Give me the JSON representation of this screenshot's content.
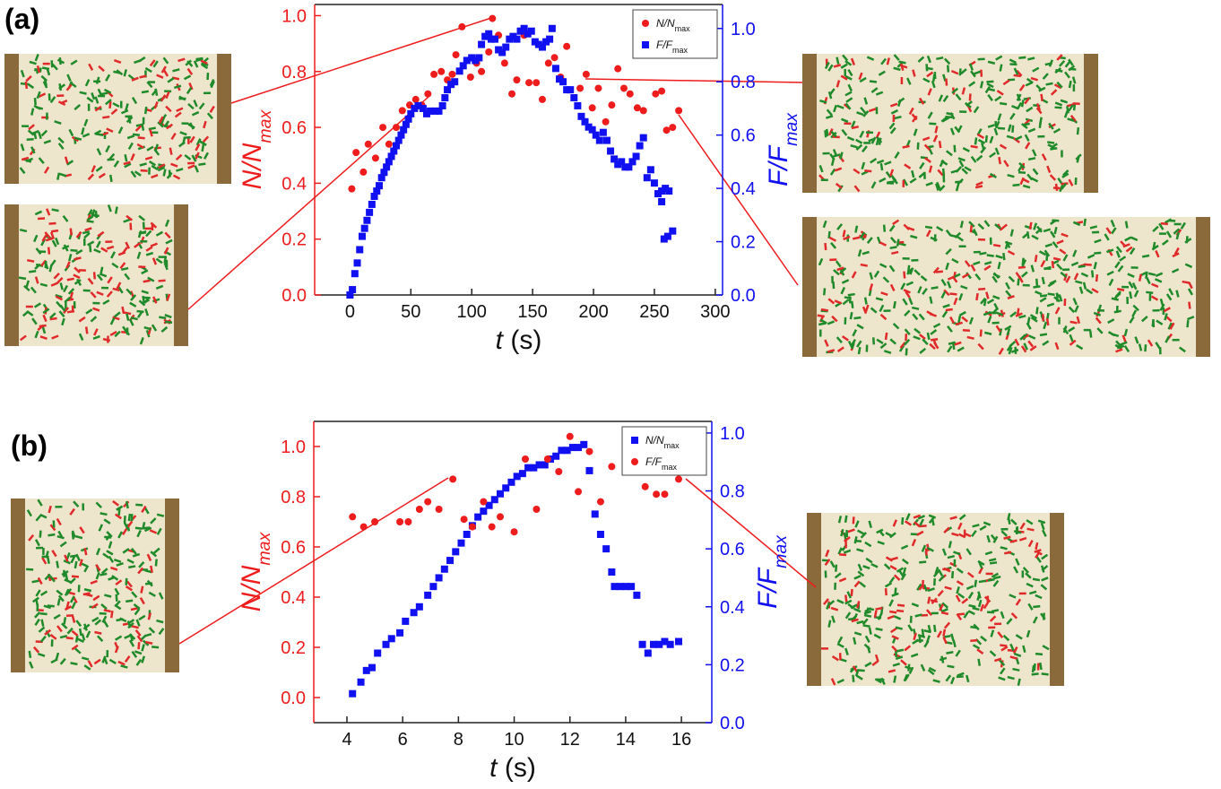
{
  "chart_data": [
    {
      "type": "scatter",
      "panel_label": "(a)",
      "x_label": [
        "t",
        " (s)"
      ],
      "y_label": [
        "N/N",
        "max"
      ],
      "y2_label": [
        "F/F",
        "max"
      ],
      "legend": "upper right",
      "xlim": [
        -29,
        306
      ],
      "xticks": [
        0,
        50,
        100,
        150,
        200,
        250,
        300
      ],
      "ylim": [
        0,
        1.04
      ],
      "yticks": [
        {
          "value": 0,
          "label": "0.0"
        },
        0.2,
        0.4,
        0.6,
        0.8,
        {
          "value": 1,
          "label": "1.0"
        }
      ],
      "y2lim": [
        0,
        1.09
      ],
      "y2ticks": [
        {
          "value": 0,
          "label": "0.0"
        },
        0.2,
        0.4,
        0.6,
        0.8,
        {
          "value": 1,
          "label": "1.0"
        }
      ],
      "series": [
        {
          "name": [
            "N/N",
            "max"
          ],
          "color": "#ee1c1c",
          "marker": "circle",
          "axis": "y",
          "x": [
            1.5,
            5,
            11,
            15,
            21,
            27,
            32,
            38,
            43,
            49,
            54,
            59,
            64,
            69,
            75,
            80,
            84,
            87,
            92,
            99,
            104,
            108,
            114,
            117,
            122,
            127,
            133,
            137,
            143,
            147,
            153,
            158,
            163,
            168,
            173,
            178,
            189,
            194,
            199,
            204,
            210,
            215,
            220,
            225,
            230,
            236,
            241,
            251,
            256,
            260,
            265,
            270
          ],
          "values": [
            0.38,
            0.51,
            0.44,
            0.54,
            0.49,
            0.6,
            0.54,
            0.6,
            0.66,
            0.68,
            0.7,
            0.68,
            0.72,
            0.79,
            0.8,
            0.77,
            0.79,
            0.86,
            0.96,
            0.78,
            0.83,
            0.8,
            0.87,
            0.99,
            0.93,
            0.83,
            0.72,
            0.77,
            0.93,
            0.76,
            0.76,
            0.7,
            0.83,
            0.85,
            0.78,
            0.89,
            0.74,
            0.79,
            0.67,
            0.74,
            0.62,
            0.68,
            0.81,
            0.74,
            0.72,
            0.67,
            0.66,
            0.72,
            0.73,
            0.59,
            0.6,
            0.66
          ]
        },
        {
          "name": [
            "F/F",
            "max"
          ],
          "color": "#1010f0",
          "marker": "square",
          "axis": "y2",
          "x": [
            0,
            2,
            4,
            6,
            8,
            10,
            12,
            14,
            16,
            18,
            20,
            22,
            24,
            26,
            28,
            30,
            32,
            34,
            36,
            38,
            40,
            42,
            44,
            46,
            48,
            50,
            53,
            56,
            60,
            63,
            66,
            70,
            73,
            76,
            78,
            80,
            83,
            86,
            90,
            93,
            96,
            100,
            103,
            106,
            108,
            111,
            114,
            116,
            119,
            122,
            125,
            128,
            131,
            134,
            137,
            140,
            143,
            146,
            149,
            152,
            155,
            158,
            161,
            164,
            166,
            169,
            172,
            175,
            178,
            181,
            184,
            187,
            190,
            193,
            196,
            199,
            202,
            205,
            208,
            211,
            214,
            217,
            220,
            223,
            226,
            229,
            232,
            235,
            238,
            241,
            244,
            247,
            250,
            253,
            256,
            259,
            262,
            256,
            258,
            261,
            265
          ],
          "values": [
            0,
            0.02,
            0.08,
            0.12,
            0.17,
            0.22,
            0.25,
            0.28,
            0.31,
            0.34,
            0.37,
            0.39,
            0.41,
            0.44,
            0.46,
            0.48,
            0.5,
            0.52,
            0.54,
            0.56,
            0.58,
            0.6,
            0.62,
            0.64,
            0.66,
            0.68,
            0.7,
            0.71,
            0.7,
            0.68,
            0.69,
            0.69,
            0.69,
            0.71,
            0.74,
            0.77,
            0.79,
            0.8,
            0.84,
            0.86,
            0.88,
            0.89,
            0.88,
            0.89,
            0.94,
            0.97,
            0.98,
            0.96,
            0.96,
            0.92,
            0.91,
            0.93,
            0.96,
            0.97,
            0.96,
            0.99,
            1.0,
            0.98,
            0.99,
            0.95,
            0.94,
            0.93,
            0.95,
            0.96,
            1.0,
            0.85,
            0.81,
            0.8,
            0.77,
            0.77,
            0.74,
            0.71,
            0.67,
            0.65,
            0.63,
            0.62,
            0.6,
            0.58,
            0.61,
            0.58,
            0.54,
            0.51,
            0.49,
            0.5,
            0.48,
            0.48,
            0.5,
            0.52,
            0.56,
            0.59,
            0.44,
            0.47,
            0.42,
            0.38,
            0.39,
            0.4,
            0.39,
            0.35,
            0.21,
            0.22,
            0.24
          ]
        }
      ]
    },
    {
      "type": "scatter",
      "panel_label": "(b)",
      "x_label": [
        "t",
        " (s)"
      ],
      "y_label": [
        "N/N",
        "max"
      ],
      "y2_label": [
        "F/F",
        "max"
      ],
      "legend": "upper right",
      "xlim": [
        2.81,
        17.09
      ],
      "xticks": [
        4,
        6,
        8,
        10,
        12,
        14,
        16
      ],
      "ylim": [
        -0.1,
        1.1
      ],
      "yticks": [
        {
          "value": 0,
          "label": "0.0"
        },
        0.2,
        0.4,
        0.6,
        0.8,
        {
          "value": 1,
          "label": "1.0"
        }
      ],
      "y2lim": [
        0,
        1.04
      ],
      "y2ticks": [
        {
          "value": 0,
          "label": "0.0"
        },
        0.2,
        0.4,
        0.6,
        0.8,
        {
          "value": 1,
          "label": "1.0"
        }
      ],
      "series": [
        {
          "name": [
            "N/N",
            "max"
          ],
          "color": "#1010f0",
          "marker": "square",
          "axis": "y2",
          "x": [
            4.2,
            4.5,
            4.7,
            4.9,
            5.1,
            5.4,
            5.6,
            5.9,
            6.1,
            6.4,
            6.6,
            6.9,
            7.1,
            7.3,
            7.5,
            7.7,
            7.9,
            8.1,
            8.3,
            8.5,
            8.7,
            8.9,
            9.1,
            9.3,
            9.5,
            9.7,
            9.9,
            10.1,
            10.3,
            10.5,
            10.7,
            10.9,
            11.1,
            11.3,
            11.5,
            11.7,
            11.9,
            12.1,
            12.3,
            12.5,
            12.7,
            12.9,
            13.1,
            13.3,
            13.5,
            13.6,
            13.8,
            14.0,
            14.2,
            14.4,
            14.6,
            14.8,
            15.0,
            15.2,
            15.4,
            15.6,
            15.9
          ],
          "values": [
            0.1,
            0.14,
            0.18,
            0.19,
            0.24,
            0.27,
            0.29,
            0.31,
            0.35,
            0.38,
            0.4,
            0.44,
            0.47,
            0.5,
            0.53,
            0.56,
            0.59,
            0.62,
            0.65,
            0.68,
            0.71,
            0.73,
            0.75,
            0.77,
            0.79,
            0.81,
            0.83,
            0.85,
            0.86,
            0.88,
            0.88,
            0.89,
            0.89,
            0.91,
            0.92,
            0.94,
            0.94,
            0.95,
            0.95,
            0.96,
            0.87,
            0.72,
            0.65,
            0.6,
            0.52,
            0.47,
            0.47,
            0.47,
            0.47,
            0.44,
            0.27,
            0.24,
            0.27,
            0.27,
            0.28,
            0.27,
            0.28
          ]
        },
        {
          "name": [
            "F/F",
            "max"
          ],
          "color": "#ee1c1c",
          "marker": "circle",
          "axis": "y",
          "x": [
            4.2,
            4.6,
            5.0,
            5.9,
            6.2,
            6.6,
            6.9,
            7.3,
            7.8,
            8.2,
            8.5,
            8.9,
            9.2,
            9.5,
            10.0,
            10.4,
            10.8,
            11.2,
            11.6,
            12.0,
            12.3,
            12.7,
            13.1,
            13.5,
            14.0,
            14.3,
            14.7,
            15.1,
            15.4,
            15.9
          ],
          "values": [
            0.72,
            0.68,
            0.7,
            0.7,
            0.7,
            0.75,
            0.78,
            0.75,
            0.87,
            0.71,
            0.68,
            0.78,
            0.68,
            0.72,
            0.66,
            0.95,
            0.75,
            0.95,
            0.9,
            1.04,
            0.82,
            0.98,
            0.78,
            0.92,
            0.93,
            0.98,
            0.84,
            0.81,
            0.81,
            0.87
          ]
        }
      ]
    }
  ]
}
